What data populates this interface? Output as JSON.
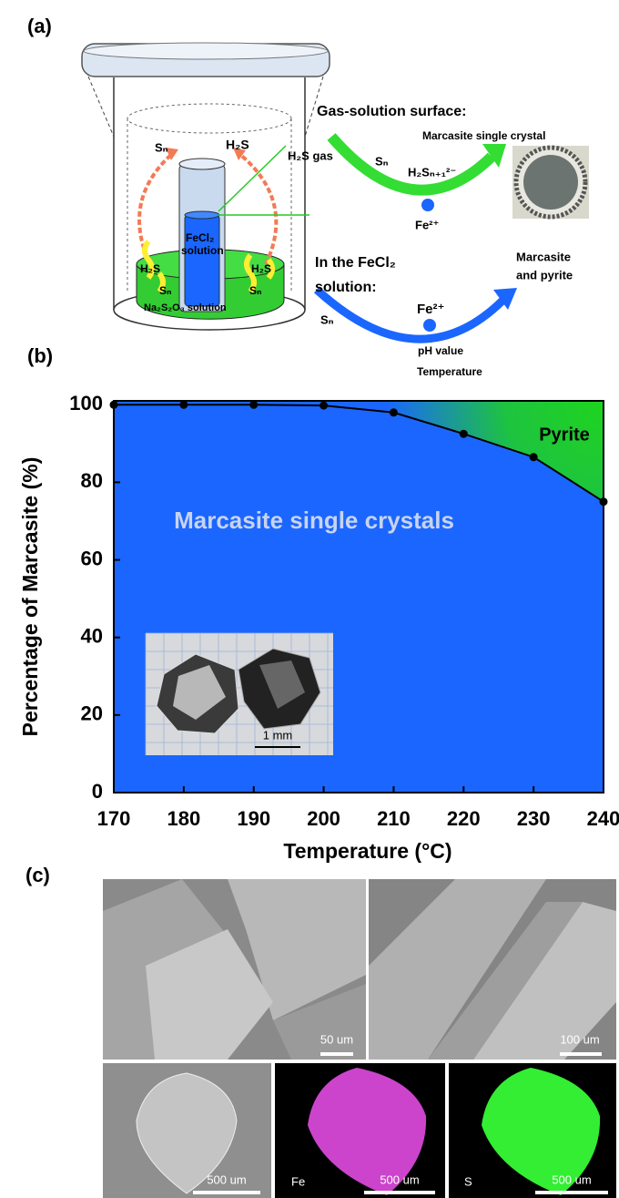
{
  "panel_labels": [
    "(a)",
    "(b)",
    "(c)"
  ],
  "diagram": {
    "tube_top_left": "Sₙ",
    "tube_top_right": "H₂S",
    "gas": "H₂S gas",
    "tube_content": "FeCl₂",
    "tube_solution": "solution",
    "bath_left_gas": "H₂S",
    "bath_right_gas": "H₂S",
    "bath_left_s": "Sₙ",
    "bath_right_s": "Sₙ",
    "bath": "Na₂S₂O₃  solution",
    "surface_title": "Gas-solution surface:",
    "surface_product": "Marcasite single crystal",
    "surface_s": "Sₙ",
    "surface_polysulfide": "H₂Sₙ₊₁²⁻",
    "surface_fe": "Fe²⁺",
    "solution_title_1": "In the FeCl₂",
    "solution_title_2": "solution:",
    "solution_product_1": "Marcasite",
    "solution_product_2": "and pyrite",
    "solution_s": "Sₙ",
    "solution_fe": "Fe²⁺",
    "solution_factor_1": "pH value",
    "solution_factor_2": "Temperature"
  },
  "chart_data": {
    "type": "line",
    "xlabel": "Temperature (°C)",
    "ylabel": "Percentage of Marcasite (%)",
    "x": [
      170,
      180,
      190,
      200,
      210,
      220,
      230,
      240
    ],
    "values": [
      100,
      100,
      100,
      99.8,
      98,
      92.5,
      86.5,
      75
    ],
    "color": "#000000",
    "background_color": "#1a66ff",
    "region_color": "#1ed41e",
    "xlim": [
      170,
      240
    ],
    "ylim": [
      0,
      101
    ],
    "xticks": [
      170,
      180,
      190,
      200,
      210,
      220,
      230,
      240
    ],
    "yticks": [
      0,
      20,
      40,
      60,
      80,
      100
    ],
    "annotations": [
      "Marcasite single crystals",
      "Pyrite"
    ],
    "inset_scale": "1 mm"
  },
  "micrographs": {
    "scale_labels": [
      "50 um",
      "100 um",
      "500 um",
      "500 um",
      "500 um"
    ],
    "element_labels": [
      "Fe",
      "S"
    ]
  }
}
